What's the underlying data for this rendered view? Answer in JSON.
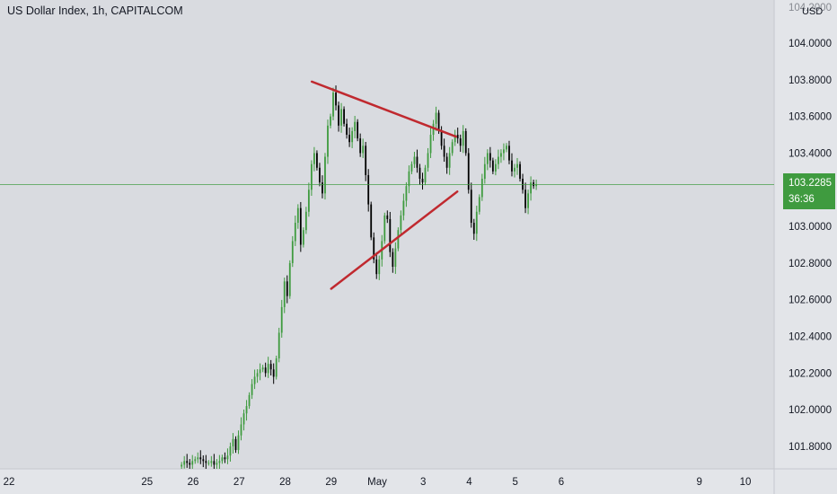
{
  "header": {
    "title": "US Dollar Index, 1h, CAPITALCOM",
    "currency": "USD"
  },
  "price_badge": {
    "price": "103.2285",
    "countdown": "36:36",
    "color": "#3f9b3f"
  },
  "colors": {
    "background": "#d9dbe0",
    "up": "#3f9b3f",
    "down": "#000000",
    "trendline": "#c0292f",
    "price_line": "#3f9b3f"
  },
  "chart_data": {
    "type": "candlestick",
    "title": "US Dollar Index, 1h, CAPITALCOM",
    "ylim": [
      101.68,
      104.2
    ],
    "y_ticks": [
      "101.8000",
      "102.0000",
      "102.2000",
      "102.4000",
      "102.6000",
      "102.8000",
      "103.0000",
      "103.2000",
      "103.4000",
      "103.6000",
      "103.8000",
      "104.0000"
    ],
    "x_ticks": [
      "22",
      "25",
      "26",
      "27",
      "28",
      "29",
      "May",
      "3",
      "4",
      "5",
      "6",
      "9",
      "10"
    ],
    "x_tick_days": [
      0,
      3,
      4,
      5,
      6,
      7,
      8,
      9,
      10,
      11,
      12,
      15,
      16
    ],
    "last_price": 103.2285,
    "candles_anchor_day": 3.75,
    "candles_per_day": 17,
    "close_path": [
      101.7,
      101.72,
      101.71,
      101.7,
      101.72,
      101.73,
      101.74,
      101.73,
      101.72,
      101.71,
      101.71,
      101.72,
      101.7,
      101.71,
      101.72,
      101.74,
      101.73,
      101.75,
      101.8,
      101.84,
      101.78,
      101.86,
      101.92,
      101.98,
      102.02,
      102.08,
      102.14,
      102.18,
      102.2,
      102.22,
      102.23,
      102.2,
      102.25,
      102.22,
      102.18,
      102.28,
      102.42,
      102.56,
      102.7,
      102.62,
      102.8,
      102.92,
      103.02,
      103.1,
      102.9,
      102.98,
      103.08,
      103.2,
      103.34,
      103.4,
      103.32,
      103.24,
      103.18,
      103.38,
      103.55,
      103.6,
      103.73,
      103.66,
      103.55,
      103.64,
      103.56,
      103.5,
      103.46,
      103.52,
      103.57,
      103.48,
      103.4,
      103.44,
      103.28,
      103.12,
      102.94,
      102.82,
      102.74,
      102.82,
      102.92,
      103.06,
      103.04,
      102.86,
      102.78,
      102.88,
      102.98,
      103.06,
      103.14,
      103.22,
      103.3,
      103.34,
      103.38,
      103.32,
      103.26,
      103.24,
      103.32,
      103.4,
      103.5,
      103.56,
      103.62,
      103.52,
      103.44,
      103.38,
      103.32,
      103.4,
      103.46,
      103.5,
      103.48,
      103.44,
      103.52,
      103.4,
      103.2,
      103.02,
      102.96,
      103.08,
      103.16,
      103.26,
      103.34,
      103.4,
      103.36,
      103.3,
      103.34,
      103.38,
      103.4,
      103.42,
      103.44,
      103.36,
      103.3,
      103.32,
      103.34,
      103.26,
      103.2,
      103.1,
      103.18,
      103.24,
      103.22,
      103.2285
    ]
  },
  "trendlines": [
    {
      "name": "upper",
      "from": {
        "day": 6.58,
        "price": 103.79
      },
      "to": {
        "day": 9.71,
        "price": 103.49
      }
    },
    {
      "name": "lower",
      "from": {
        "day": 7.0,
        "price": 102.66
      },
      "to": {
        "day": 9.74,
        "price": 103.19
      }
    }
  ]
}
